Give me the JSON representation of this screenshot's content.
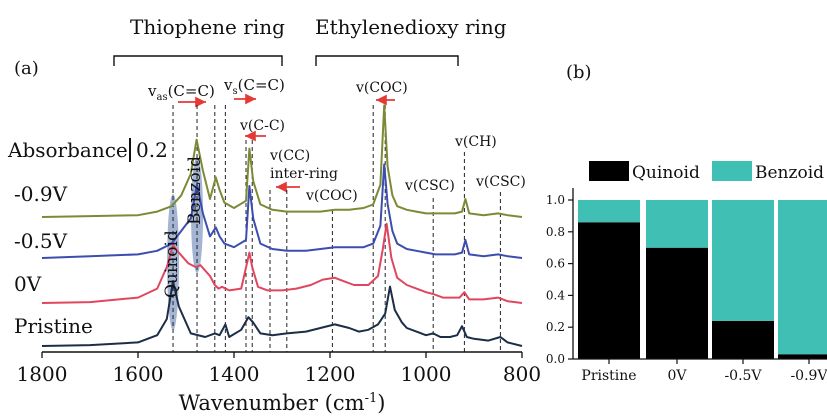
{
  "panel_a": {
    "label": "(a)",
    "group_labels": {
      "thiophene": "Thiophene ring",
      "ethylenedioxy": "Ethylenedioxy ring"
    },
    "absorbance_label": "Absorbance",
    "absorbance_scale": "0.2",
    "peak_labels": {
      "v_as_cc": "v",
      "v_as_sub": "as",
      "v_as_tail": "(C=C)",
      "v_s_cc": "v",
      "v_s_sub": "s",
      "v_s_tail": "(C=C)",
      "v_c_c": "v(C-C)",
      "v_cc_inter_1": "v(CC)",
      "v_cc_inter_2": "inter-ring",
      "v_coc_top": "v(COC)",
      "v_coc_mid": "v(COC)",
      "v_csc_1": "v(CSC)",
      "v_ch": "v(CH)",
      "v_csc_2": "v(CSC)"
    },
    "band_labels": {
      "quinoid": "Quinoid",
      "benzoid": "Benzoid"
    },
    "series_labels": [
      "-0.9V",
      "-0.5V",
      "0V",
      "Pristine"
    ],
    "xlabel": "Wavenumber (cm",
    "xlabel_sup": "-1",
    "xlabel_tail": ")",
    "xticks": [
      "1800",
      "1600",
      "1400",
      "1200",
      "1000",
      "800"
    ]
  },
  "panel_b": {
    "label": "(b)",
    "legend": {
      "quinoid": "Quinoid",
      "benzoid": "Benzoid"
    },
    "yticks": [
      "0.0",
      "0.2",
      "0.4",
      "0.6",
      "0.8",
      "1.0"
    ],
    "categories": [
      "Pristine",
      "0V",
      "-0.5V",
      "-0.9V"
    ]
  },
  "colors": {
    "pristine": "#1c2d47",
    "zero_v": "#e0465e",
    "minus_05": "#3c4db0",
    "minus_09": "#7b8a35",
    "quinoid": "#000000",
    "benzoid": "#40bfb4",
    "band_fill": "#5a79b0",
    "arrow": "#e53935"
  },
  "chart_data": [
    {
      "type": "line",
      "title": "",
      "xlabel": "Wavenumber (cm-1)",
      "ylabel": "Absorbance",
      "xlim": [
        1800,
        800
      ],
      "x_reversed": true,
      "grid": false,
      "series": [
        {
          "name": "Pristine",
          "x": [
            1800,
            1700,
            1600,
            1560,
            1540,
            1527,
            1515,
            1490,
            1460,
            1440,
            1430,
            1418,
            1410,
            1385,
            1370,
            1360,
            1345,
            1320,
            1290,
            1250,
            1220,
            1190,
            1160,
            1140,
            1120,
            1100,
            1085,
            1075,
            1065,
            1050,
            1040,
            1020,
            1000,
            985,
            970,
            950,
            935,
            925,
            915,
            900,
            870,
            845,
            830,
            800
          ],
          "y": [
            0.0,
            0.005,
            0.02,
            0.06,
            0.15,
            0.36,
            0.22,
            0.07,
            0.05,
            0.07,
            0.06,
            0.12,
            0.05,
            0.09,
            0.16,
            0.13,
            0.07,
            0.06,
            0.07,
            0.08,
            0.1,
            0.12,
            0.1,
            0.08,
            0.09,
            0.12,
            0.18,
            0.33,
            0.2,
            0.13,
            0.1,
            0.08,
            0.06,
            0.07,
            0.05,
            0.05,
            0.06,
            0.11,
            0.05,
            0.04,
            0.03,
            0.05,
            0.02,
            0.0
          ]
        },
        {
          "name": "0V",
          "x": [
            1800,
            1700,
            1600,
            1560,
            1540,
            1527,
            1515,
            1495,
            1480,
            1470,
            1450,
            1440,
            1432,
            1425,
            1410,
            1385,
            1368,
            1362,
            1350,
            1330,
            1300,
            1270,
            1240,
            1215,
            1190,
            1170,
            1150,
            1120,
            1100,
            1090,
            1082,
            1072,
            1060,
            1040,
            1020,
            1000,
            985,
            965,
            945,
            930,
            920,
            910,
            880,
            850,
            830,
            800
          ],
          "y": [
            0.0,
            0.005,
            0.03,
            0.08,
            0.2,
            0.32,
            0.28,
            0.22,
            0.2,
            0.21,
            0.15,
            0.1,
            0.08,
            0.09,
            0.07,
            0.08,
            0.28,
            0.2,
            0.09,
            0.07,
            0.07,
            0.08,
            0.1,
            0.13,
            0.14,
            0.12,
            0.1,
            0.1,
            0.15,
            0.3,
            0.44,
            0.25,
            0.14,
            0.1,
            0.08,
            0.06,
            0.05,
            0.03,
            0.03,
            0.03,
            0.06,
            0.02,
            0.02,
            0.03,
            0.01,
            0.0
          ]
        },
        {
          "name": "-0.5V",
          "x": [
            1800,
            1700,
            1600,
            1560,
            1530,
            1510,
            1490,
            1477,
            1465,
            1450,
            1438,
            1430,
            1420,
            1400,
            1375,
            1368,
            1360,
            1345,
            1320,
            1290,
            1250,
            1220,
            1190,
            1160,
            1130,
            1110,
            1095,
            1087,
            1080,
            1070,
            1060,
            1040,
            1020,
            1000,
            980,
            960,
            940,
            925,
            918,
            910,
            880,
            850,
            830,
            800
          ],
          "y": [
            0.0,
            0.01,
            0.02,
            0.04,
            0.08,
            0.15,
            0.22,
            0.41,
            0.25,
            0.12,
            0.17,
            0.12,
            0.08,
            0.06,
            0.1,
            0.4,
            0.22,
            0.08,
            0.05,
            0.04,
            0.04,
            0.05,
            0.06,
            0.06,
            0.06,
            0.08,
            0.18,
            0.52,
            0.3,
            0.15,
            0.08,
            0.05,
            0.04,
            0.03,
            0.02,
            0.02,
            0.02,
            0.03,
            0.1,
            0.02,
            0.01,
            0.02,
            0.01,
            0.0
          ]
        },
        {
          "name": "-0.9V",
          "x": [
            1800,
            1700,
            1600,
            1560,
            1530,
            1510,
            1490,
            1478,
            1465,
            1450,
            1438,
            1430,
            1420,
            1400,
            1375,
            1368,
            1360,
            1345,
            1320,
            1290,
            1250,
            1220,
            1190,
            1160,
            1130,
            1110,
            1095,
            1087,
            1080,
            1070,
            1060,
            1040,
            1020,
            1000,
            980,
            960,
            940,
            925,
            918,
            910,
            880,
            850,
            830,
            800
          ],
          "y": [
            0.0,
            0.005,
            0.01,
            0.03,
            0.06,
            0.12,
            0.24,
            0.43,
            0.26,
            0.1,
            0.22,
            0.15,
            0.08,
            0.05,
            0.09,
            0.38,
            0.2,
            0.07,
            0.04,
            0.03,
            0.03,
            0.03,
            0.04,
            0.04,
            0.05,
            0.07,
            0.18,
            0.62,
            0.28,
            0.12,
            0.06,
            0.04,
            0.03,
            0.02,
            0.02,
            0.02,
            0.02,
            0.03,
            0.1,
            0.02,
            0.01,
            0.02,
            0.01,
            0.0
          ]
        }
      ]
    },
    {
      "type": "bar",
      "stacked": true,
      "title": "",
      "xlabel": "",
      "ylabel": "",
      "ylim": [
        0,
        1.0
      ],
      "legend_position": "top",
      "categories": [
        "Pristine",
        "0V",
        "-0.5V",
        "-0.9V"
      ],
      "series": [
        {
          "name": "Quinoid",
          "values": [
            0.86,
            0.7,
            0.24,
            0.03
          ]
        },
        {
          "name": "Benzoid",
          "values": [
            0.14,
            0.3,
            0.76,
            0.97
          ]
        }
      ]
    }
  ]
}
